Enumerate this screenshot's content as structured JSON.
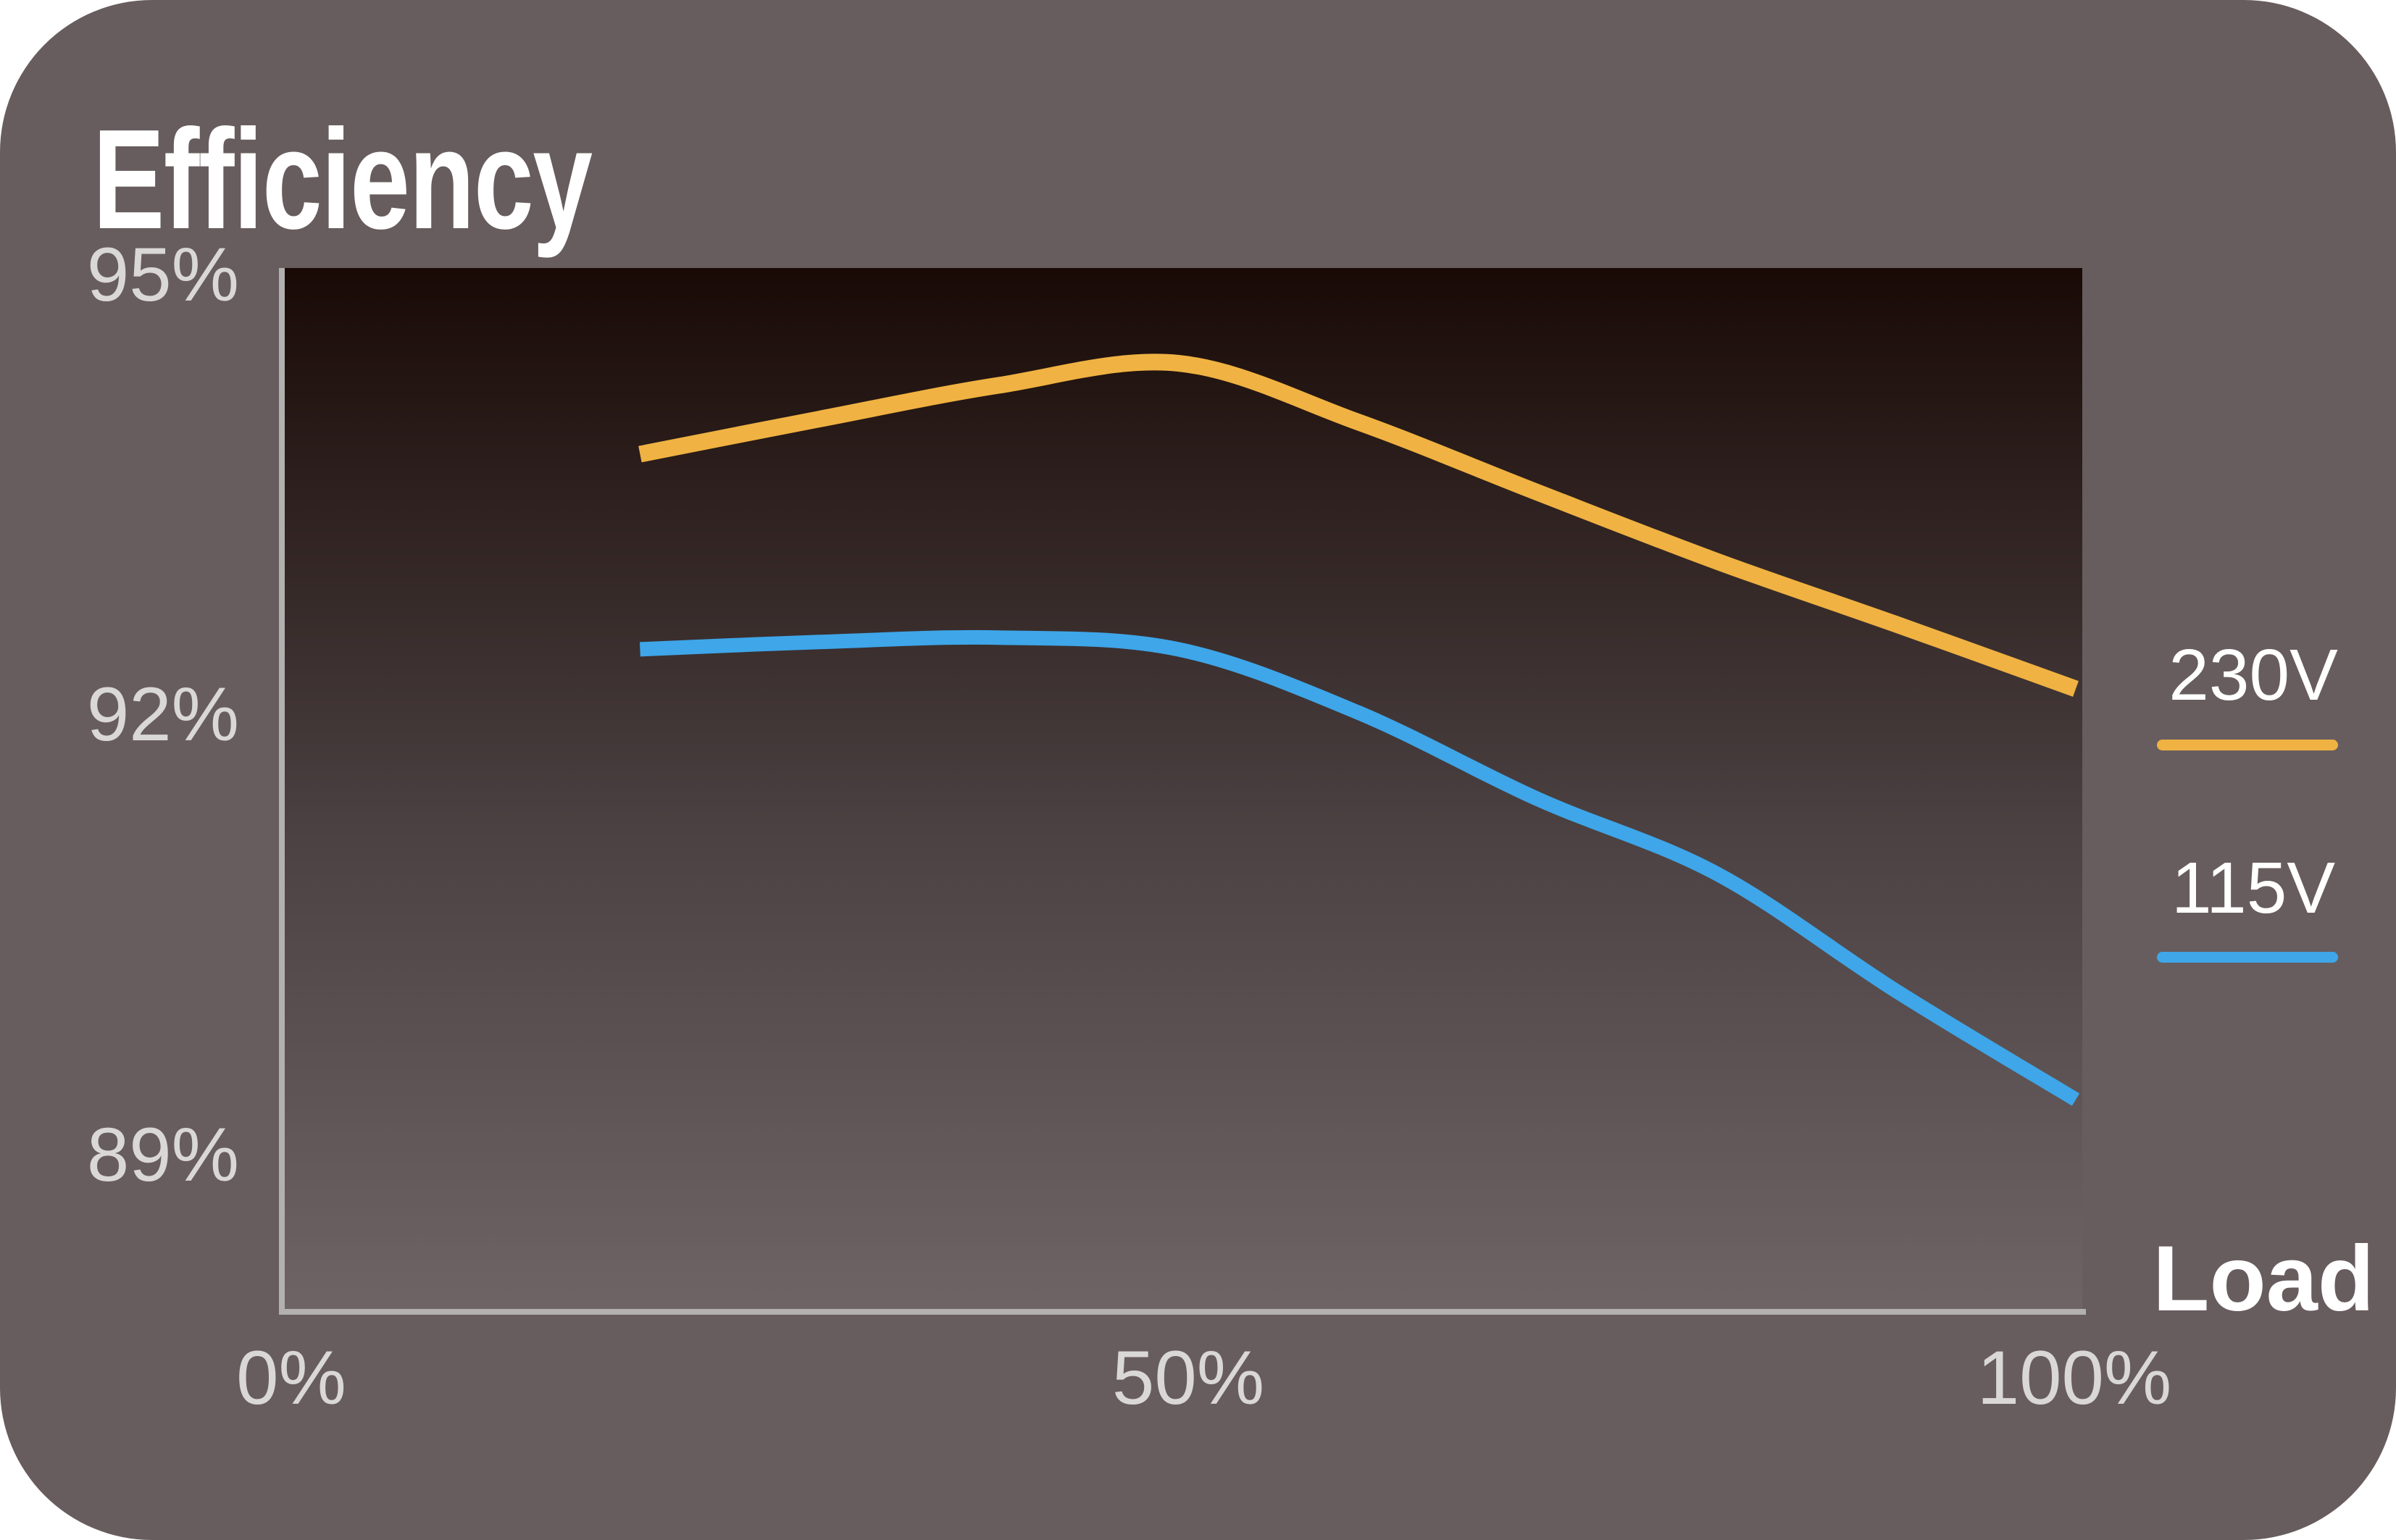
{
  "card": {
    "title": "Efficiency",
    "xlabel": "Load"
  },
  "colors": {
    "page_bg": "#FFFFFF",
    "card_bg": "#685D5E",
    "plot_gradient_top": "#190A06",
    "plot_gradient_mid": "#4C4243",
    "plot_gradient_bottom": "#6E6466",
    "axis": "#B3B1AF",
    "tick_text": "#DAD8D6",
    "title_text": "#FFFFFF"
  },
  "legend": {
    "items": [
      {
        "label": "230V",
        "color": "#F0B242"
      },
      {
        "label": "115V",
        "color": "#3EA6E9"
      }
    ]
  },
  "chart_data": {
    "type": "line",
    "title": "Efficiency",
    "xlabel": "Load",
    "ylabel": "Efficiency",
    "x_ticks": [
      "0%",
      "50%",
      "100%"
    ],
    "y_ticks": [
      "95%",
      "92%",
      "89%"
    ],
    "x_tick_values": [
      0,
      50,
      100
    ],
    "y_tick_values": [
      95,
      92,
      89
    ],
    "xlim": [
      0,
      100
    ],
    "ylim": [
      87.9,
      95.05
    ],
    "grid": false,
    "legend_position": "right",
    "series": [
      {
        "name": "230V",
        "color": "#F0B242",
        "stroke_width": 23,
        "points": [
          [
            20,
            93.78
          ],
          [
            30,
            94.02
          ],
          [
            40,
            94.25
          ],
          [
            50,
            94.4
          ],
          [
            60,
            94.0
          ],
          [
            70,
            93.52
          ],
          [
            80,
            93.05
          ],
          [
            90,
            92.62
          ],
          [
            100,
            92.18
          ]
        ]
      },
      {
        "name": "115V",
        "color": "#3EA6E9",
        "stroke_width": 20,
        "points": [
          [
            20,
            92.45
          ],
          [
            30,
            92.5
          ],
          [
            40,
            92.53
          ],
          [
            50,
            92.45
          ],
          [
            60,
            92.02
          ],
          [
            70,
            91.43
          ],
          [
            80,
            90.92
          ],
          [
            90,
            90.12
          ],
          [
            100,
            89.38
          ]
        ]
      }
    ]
  }
}
